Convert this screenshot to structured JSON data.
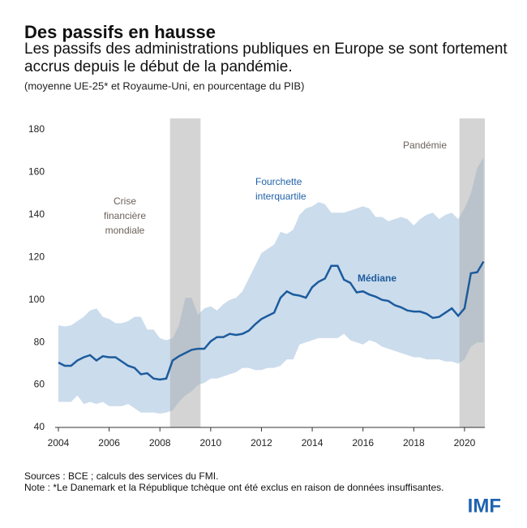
{
  "chart_data": {
    "type": "line",
    "title": "Des passifs en hausse",
    "subtitle": "Les passifs des administrations publiques en Europe se sont fortement accrus depuis le début de la pandémie.",
    "note_units": "(moyenne UE-25* et Royaume-Uni, en pourcentage du PIB)",
    "x_start": 2004,
    "x_step": 0.25,
    "series": [
      {
        "name": "Médiane",
        "color": "#1c5b9d",
        "values": [
          70.5,
          69,
          69,
          71.5,
          73,
          74,
          71.5,
          73.5,
          73,
          73,
          71,
          69,
          68,
          65,
          65.5,
          63,
          62.5,
          63,
          71.5,
          73.5,
          75,
          76.5,
          77,
          77,
          80.5,
          82.5,
          82.5,
          84,
          83.5,
          84,
          85.5,
          88.5,
          91,
          92.5,
          94,
          101,
          104,
          102.5,
          102,
          101,
          106,
          108.5,
          110,
          116,
          116,
          109.5,
          108,
          103.5,
          104,
          102.5,
          101.5,
          100,
          99.5,
          97.5,
          96.5,
          95,
          94.5,
          94.5,
          93.5,
          91.5,
          92,
          94,
          96,
          92.5,
          96,
          112.5,
          113,
          118
        ]
      }
    ],
    "band": {
      "name": "Fourchette interquartile",
      "color": "#cbdcec",
      "upper": [
        88,
        87.5,
        88,
        90,
        92,
        95,
        96,
        92,
        91,
        89,
        89,
        90,
        92,
        92,
        86,
        86,
        82,
        81,
        82,
        88,
        101,
        101,
        93,
        96,
        97,
        95,
        98,
        100,
        101,
        104,
        110,
        116,
        122,
        124,
        126,
        132,
        131,
        133,
        140,
        143,
        144,
        146,
        145,
        141,
        141,
        141,
        142,
        143,
        144,
        143,
        139,
        139,
        137,
        138,
        139,
        138,
        135,
        138,
        140,
        141,
        138,
        140,
        141,
        138,
        143,
        150,
        162,
        167
      ],
      "lower": [
        52,
        52,
        52,
        55,
        51,
        52,
        51,
        52,
        50,
        50,
        50,
        51,
        49,
        47,
        47,
        47,
        46.5,
        47,
        48,
        52,
        55,
        57,
        60,
        61,
        63,
        63,
        64,
        65,
        66,
        68,
        68,
        67,
        67,
        68,
        68,
        69,
        72,
        72,
        79,
        80,
        81,
        82,
        82,
        82,
        82,
        84,
        81,
        80,
        79,
        81,
        80,
        78,
        77,
        76,
        75,
        74,
        73,
        73,
        72,
        72,
        72,
        71,
        71,
        70,
        72,
        78,
        80,
        80
      ]
    },
    "band_label": [
      "Fourchette",
      "interquartile"
    ],
    "shaded_periods": [
      {
        "start": 2008.4,
        "end": 2009.6,
        "label": [
          "Crise",
          "financière",
          "mondiale"
        ]
      },
      {
        "start": 2019.8,
        "end": 2020.8,
        "label": [
          "Pandémie"
        ]
      }
    ],
    "shade_color": "#a9a9a9",
    "xlim": [
      2004,
      2020.8
    ],
    "xticks": [
      2004,
      2006,
      2008,
      2010,
      2012,
      2014,
      2016,
      2018,
      2020
    ],
    "ylim": [
      40,
      180
    ],
    "yticks": [
      40,
      60,
      80,
      100,
      120,
      140,
      160,
      180
    ],
    "sources": "Sources : BCE ; calculs des services du FMI.",
    "note": "Note : *Le Danemark et la République tchèque ont été exclus en raison de données insuffisantes.",
    "logo": "IMF"
  }
}
